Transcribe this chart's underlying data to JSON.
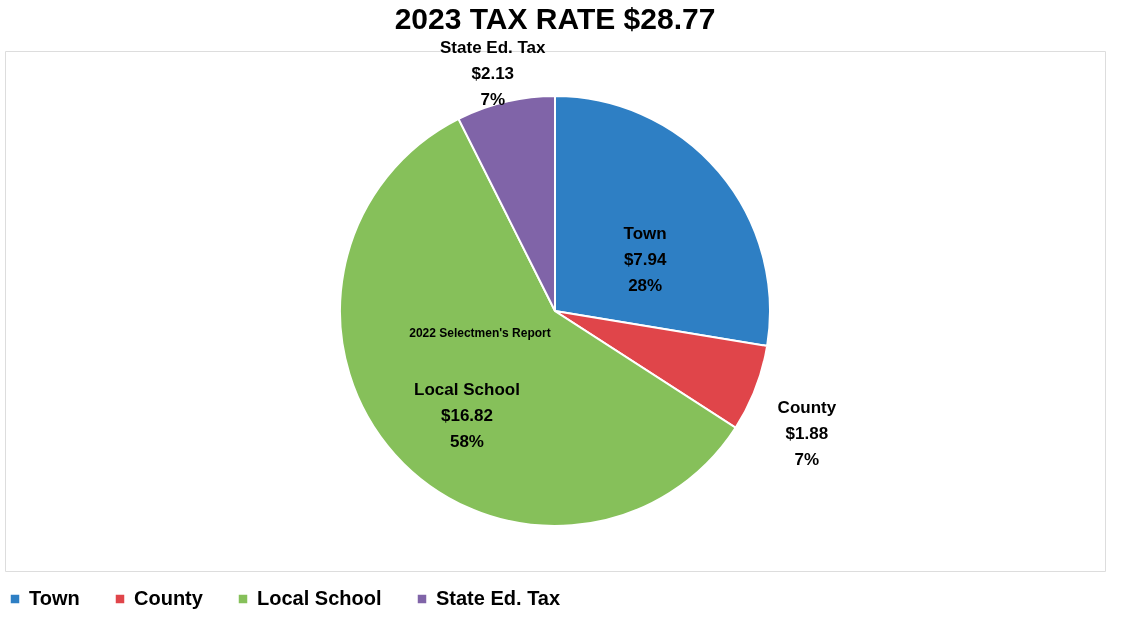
{
  "chart_data": {
    "type": "pie",
    "title": "2023 TAX RATE $28.77",
    "categories": [
      "Town",
      "County",
      "Local School",
      "State Ed. Tax"
    ],
    "values": [
      7.94,
      1.88,
      16.82,
      2.13
    ],
    "colors": [
      "#2e7fc4",
      "#e0454a",
      "#86c05a",
      "#8064a8"
    ],
    "value_labels": [
      "$7.94\n28%",
      "$1.88\n7%",
      "$16.82\n58%",
      "$2.13\n7%"
    ],
    "annotations": [
      "2022 Selectmen's Report"
    ],
    "legend": "bottom"
  }
}
